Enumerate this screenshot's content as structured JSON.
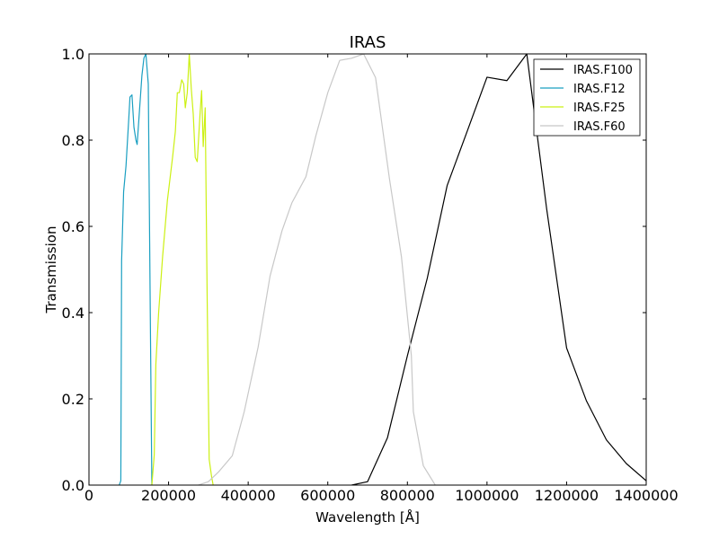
{
  "chart_data": {
    "type": "line",
    "title": "IRAS",
    "xlabel": "Wavelength [Å]",
    "ylabel": "Transmission",
    "xlim": [
      0,
      1400000
    ],
    "ylim": [
      0,
      1.0
    ],
    "x_ticks": [
      0,
      200000,
      400000,
      600000,
      800000,
      1000000,
      1200000,
      1400000
    ],
    "x_tick_labels": [
      "0",
      "200000",
      "400000",
      "600000",
      "800000",
      "1000000",
      "1200000",
      "1400000"
    ],
    "y_ticks": [
      0,
      0.2,
      0.4,
      0.6,
      0.8,
      1.0
    ],
    "y_tick_labels": [
      "0.0",
      "0.2",
      "0.4",
      "0.6",
      "0.8",
      "1.0"
    ],
    "grid": false,
    "legend_position": "top-right",
    "series": [
      {
        "name": "IRAS.F100",
        "color": "#000000",
        "points": [
          [
            660000,
            0.0
          ],
          [
            700000,
            0.008
          ],
          [
            750000,
            0.11
          ],
          [
            800000,
            0.3
          ],
          [
            850000,
            0.48
          ],
          [
            900000,
            0.695
          ],
          [
            950000,
            0.82
          ],
          [
            1000000,
            0.946
          ],
          [
            1050000,
            0.938
          ],
          [
            1100000,
            1.0
          ],
          [
            1150000,
            0.64
          ],
          [
            1200000,
            0.318
          ],
          [
            1250000,
            0.195
          ],
          [
            1300000,
            0.105
          ],
          [
            1350000,
            0.05
          ],
          [
            1400000,
            0.01
          ]
        ]
      },
      {
        "name": "IRAS.F12",
        "color": "#1a9fc1",
        "points": [
          [
            76000,
            0.0
          ],
          [
            80000,
            0.01
          ],
          [
            82000,
            0.52
          ],
          [
            87000,
            0.68
          ],
          [
            93000,
            0.74
          ],
          [
            100000,
            0.85
          ],
          [
            103000,
            0.9
          ],
          [
            108000,
            0.905
          ],
          [
            113000,
            0.83
          ],
          [
            118000,
            0.8
          ],
          [
            121000,
            0.79
          ],
          [
            127000,
            0.87
          ],
          [
            133000,
            0.95
          ],
          [
            138000,
            0.99
          ],
          [
            143000,
            1.0
          ],
          [
            149000,
            0.93
          ],
          [
            154000,
            0.4
          ],
          [
            158000,
            0.0
          ]
        ]
      },
      {
        "name": "IRAS.F25",
        "color": "#ccf013",
        "points": [
          [
            158000,
            0.0
          ],
          [
            164000,
            0.07
          ],
          [
            168000,
            0.28
          ],
          [
            175000,
            0.4
          ],
          [
            185000,
            0.53
          ],
          [
            197000,
            0.66
          ],
          [
            210000,
            0.76
          ],
          [
            217000,
            0.82
          ],
          [
            222000,
            0.91
          ],
          [
            227000,
            0.91
          ],
          [
            233000,
            0.94
          ],
          [
            238000,
            0.93
          ],
          [
            242000,
            0.875
          ],
          [
            247000,
            0.91
          ],
          [
            252000,
            1.0
          ],
          [
            257000,
            0.92
          ],
          [
            262000,
            0.86
          ],
          [
            267000,
            0.76
          ],
          [
            272000,
            0.75
          ],
          [
            279000,
            0.86
          ],
          [
            283000,
            0.915
          ],
          [
            287000,
            0.785
          ],
          [
            292000,
            0.875
          ],
          [
            297000,
            0.43
          ],
          [
            302000,
            0.06
          ],
          [
            308000,
            0.02
          ],
          [
            312000,
            0.0
          ]
        ]
      },
      {
        "name": "IRAS.F60",
        "color": "#c8c8c8",
        "points": [
          [
            275000,
            0.0
          ],
          [
            300000,
            0.008
          ],
          [
            325000,
            0.03
          ],
          [
            360000,
            0.068
          ],
          [
            390000,
            0.17
          ],
          [
            425000,
            0.32
          ],
          [
            455000,
            0.485
          ],
          [
            485000,
            0.59
          ],
          [
            510000,
            0.655
          ],
          [
            545000,
            0.715
          ],
          [
            570000,
            0.81
          ],
          [
            600000,
            0.91
          ],
          [
            630000,
            0.985
          ],
          [
            660000,
            0.99
          ],
          [
            690000,
            1.0
          ],
          [
            720000,
            0.945
          ],
          [
            755000,
            0.71
          ],
          [
            785000,
            0.53
          ],
          [
            810000,
            0.3
          ],
          [
            815000,
            0.17
          ],
          [
            840000,
            0.045
          ],
          [
            870000,
            0.0
          ]
        ]
      }
    ]
  }
}
